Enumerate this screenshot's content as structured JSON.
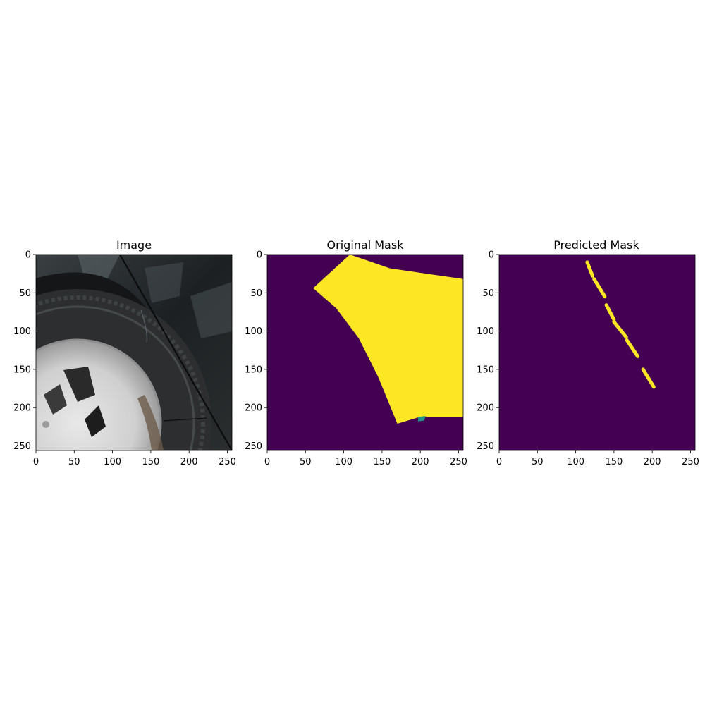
{
  "chart_data": [
    {
      "type": "image",
      "title": "Image",
      "xlim": [
        0,
        256
      ],
      "ylim": [
        256,
        0
      ],
      "xticks": [
        0,
        50,
        100,
        150,
        200,
        250
      ],
      "yticks": [
        0,
        50,
        100,
        150,
        200,
        250
      ],
      "xtick_labels": [
        "0",
        "50",
        "100",
        "150",
        "200",
        "250"
      ],
      "ytick_labels": [
        "0",
        "50",
        "100",
        "150",
        "200",
        "250"
      ]
    },
    {
      "type": "heatmap",
      "title": "Original Mask",
      "xlim": [
        0,
        256
      ],
      "ylim": [
        256,
        0
      ],
      "xticks": [
        0,
        50,
        100,
        150,
        200,
        250
      ],
      "yticks": [
        0,
        50,
        100,
        150,
        200,
        250
      ],
      "xtick_labels": [
        "0",
        "50",
        "100",
        "150",
        "200",
        "250"
      ],
      "ytick_labels": [
        "0",
        "50",
        "100",
        "150",
        "200",
        "250"
      ],
      "colormap": "viridis",
      "background_color": "#440154",
      "region_color": "#fde725",
      "edge_color": "#21918c",
      "region_polygon": [
        [
          60,
          44
        ],
        [
          108,
          0
        ],
        [
          160,
          18
        ],
        [
          256,
          32
        ],
        [
          256,
          212
        ],
        [
          200,
          212
        ],
        [
          170,
          221
        ],
        [
          145,
          160
        ],
        [
          120,
          110
        ],
        [
          90,
          70
        ]
      ],
      "edge_polygon": [
        [
          197,
          212
        ],
        [
          207,
          211
        ],
        [
          205,
          217
        ],
        [
          197,
          218
        ]
      ]
    },
    {
      "type": "heatmap",
      "title": "Predicted Mask",
      "xlim": [
        0,
        256
      ],
      "ylim": [
        256,
        0
      ],
      "xticks": [
        0,
        50,
        100,
        150,
        200,
        250
      ],
      "yticks": [
        0,
        50,
        100,
        150,
        200,
        250
      ],
      "xtick_labels": [
        "0",
        "50",
        "100",
        "150",
        "200",
        "250"
      ],
      "ytick_labels": [
        "0",
        "50",
        "100",
        "150",
        "200",
        "250"
      ],
      "colormap": "viridis",
      "background_color": "#440154",
      "region_color": "#fde725",
      "segments": [
        [
          [
            115,
            10
          ],
          [
            122,
            28
          ]
        ],
        [
          [
            124,
            32
          ],
          [
            138,
            55
          ]
        ],
        [
          [
            140,
            66
          ],
          [
            150,
            85
          ]
        ],
        [
          [
            150,
            88
          ],
          [
            166,
            108
          ]
        ],
        [
          [
            167,
            112
          ],
          [
            181,
            133
          ]
        ],
        [
          [
            188,
            150
          ],
          [
            202,
            173
          ]
        ]
      ]
    }
  ]
}
